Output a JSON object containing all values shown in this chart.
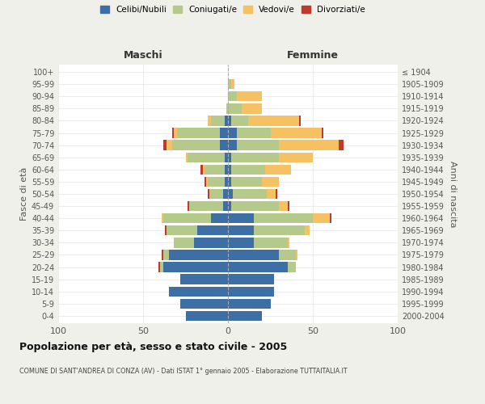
{
  "age_groups": [
    "0-4",
    "5-9",
    "10-14",
    "15-19",
    "20-24",
    "25-29",
    "30-34",
    "35-39",
    "40-44",
    "45-49",
    "50-54",
    "55-59",
    "60-64",
    "65-69",
    "70-74",
    "75-79",
    "80-84",
    "85-89",
    "90-94",
    "95-99",
    "100+"
  ],
  "birth_years": [
    "2000-2004",
    "1995-1999",
    "1990-1994",
    "1985-1989",
    "1980-1984",
    "1975-1979",
    "1970-1974",
    "1965-1969",
    "1960-1964",
    "1955-1959",
    "1950-1954",
    "1945-1949",
    "1940-1944",
    "1935-1939",
    "1930-1934",
    "1925-1929",
    "1920-1924",
    "1915-1919",
    "1910-1914",
    "1905-1909",
    "≤ 1904"
  ],
  "colors": {
    "celibi": "#3d6fa5",
    "coniugati": "#b5c98a",
    "vedovi": "#f5c162",
    "divorziati": "#c0392b"
  },
  "maschi": {
    "celibi": [
      25,
      28,
      35,
      28,
      38,
      35,
      20,
      18,
      10,
      3,
      3,
      2,
      2,
      2,
      5,
      5,
      2,
      0,
      0,
      0,
      0
    ],
    "coniugati": [
      0,
      0,
      0,
      0,
      2,
      3,
      12,
      18,
      28,
      20,
      8,
      10,
      12,
      22,
      28,
      25,
      8,
      1,
      0,
      0,
      0
    ],
    "vedovi": [
      0,
      0,
      0,
      0,
      0,
      0,
      0,
      0,
      1,
      0,
      0,
      1,
      1,
      1,
      3,
      2,
      2,
      0,
      0,
      0,
      0
    ],
    "divorziati": [
      0,
      0,
      0,
      0,
      1,
      1,
      0,
      1,
      0,
      1,
      1,
      1,
      1,
      0,
      2,
      1,
      0,
      0,
      0,
      0,
      0
    ]
  },
  "femmine": {
    "celibi": [
      20,
      25,
      27,
      27,
      35,
      30,
      15,
      15,
      15,
      2,
      3,
      2,
      2,
      2,
      5,
      5,
      2,
      0,
      0,
      0,
      0
    ],
    "coniugati": [
      0,
      0,
      0,
      0,
      5,
      10,
      20,
      30,
      35,
      28,
      20,
      18,
      20,
      28,
      25,
      20,
      10,
      8,
      5,
      2,
      0
    ],
    "vedovi": [
      0,
      0,
      0,
      0,
      0,
      1,
      1,
      3,
      10,
      5,
      5,
      10,
      15,
      20,
      35,
      30,
      30,
      12,
      15,
      2,
      0
    ],
    "divorziati": [
      0,
      0,
      0,
      0,
      0,
      0,
      0,
      0,
      1,
      1,
      1,
      0,
      0,
      0,
      3,
      1,
      1,
      0,
      0,
      0,
      0
    ]
  },
  "title": "Popolazione per età, sesso e stato civile - 2005",
  "subtitle": "COMUNE DI SANT'ANDREA DI CONZA (AV) - Dati ISTAT 1° gennaio 2005 - Elaborazione TUTTAITALIA.IT",
  "xlabel_left": "Maschi",
  "xlabel_right": "Femmine",
  "ylabel_left": "Fasce di età",
  "ylabel_right": "Anni di nascita",
  "xlim": 100,
  "legend_labels": [
    "Celibi/Nubili",
    "Coniugati/e",
    "Vedovi/e",
    "Divorziati/e"
  ],
  "bg_color": "#f0f0eb",
  "plot_bg_color": "#ffffff"
}
